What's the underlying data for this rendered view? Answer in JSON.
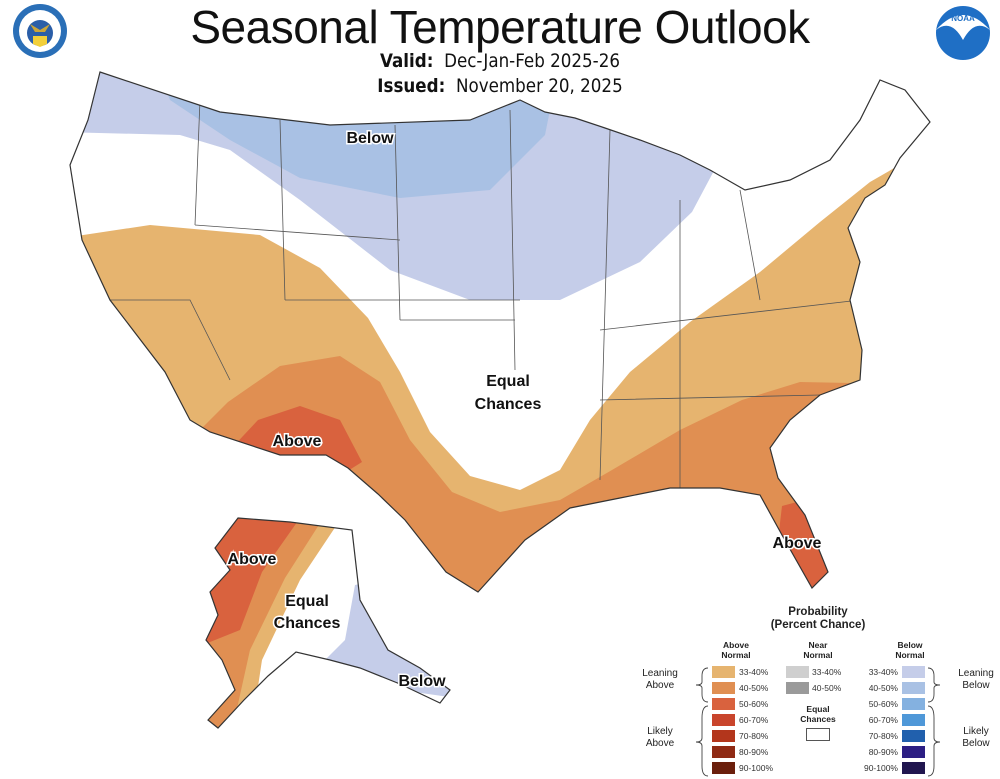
{
  "header": {
    "title": "Seasonal Temperature Outlook",
    "valid_label": "Valid:",
    "valid_value": "Dec-Jan-Feb 2025-26",
    "issued_label": "Issued:",
    "issued_value": "November 20, 2025",
    "left_logo": "department-of-commerce-seal",
    "right_logo": "noaa-logo",
    "right_logo_text": "NOAA"
  },
  "map": {
    "labels": {
      "conus_below": "Below",
      "conus_equal_1": "Equal",
      "conus_equal_2": "Chances",
      "conus_above_sw": "Above",
      "conus_above_fl": "Above",
      "ak_above": "Above",
      "ak_equal_1": "Equal",
      "ak_equal_2": "Chances",
      "ak_below": "Below"
    },
    "regions": [
      {
        "area": "Northern tier (Pacific NW to Great Lakes)",
        "category": "Below",
        "probability": "33-40%"
      },
      {
        "area": "Northern Plains core",
        "category": "Below",
        "probability": "40-50%"
      },
      {
        "area": "California to Mid-Atlantic/Northeast arc",
        "category": "Above",
        "probability": "33-40%"
      },
      {
        "area": "Southwest, Texas, Gulf Coast, Southeast",
        "category": "Above",
        "probability": "40-50%"
      },
      {
        "area": "New Mexico / Far West Texas",
        "category": "Above",
        "probability": "50-60%"
      },
      {
        "area": "Florida peninsula",
        "category": "Above",
        "probability": "50-60%"
      },
      {
        "area": "Central/Southern Plains, Ohio Valley, New England",
        "category": "Equal Chances"
      },
      {
        "area": "Western Alaska",
        "category": "Above",
        "probability": "50-60%"
      },
      {
        "area": "Southeast Alaska",
        "category": "Below",
        "probability": "33-40%"
      }
    ]
  },
  "legend": {
    "title_1": "Probability",
    "title_2": "(Percent Chance)",
    "above_head_1": "Above",
    "above_head_2": "Normal",
    "near_head_1": "Near",
    "near_head_2": "Normal",
    "below_head_1": "Below",
    "below_head_2": "Normal",
    "leaning_above_1": "Leaning",
    "leaning_above_2": "Above",
    "likely_above_1": "Likely",
    "likely_above_2": "Above",
    "leaning_below_1": "Leaning",
    "leaning_below_2": "Below",
    "likely_below_1": "Likely",
    "likely_below_2": "Below",
    "equal_1": "Equal",
    "equal_2": "Chances",
    "above": [
      {
        "range": "33-40%",
        "color": "#e6b46f"
      },
      {
        "range": "40-50%",
        "color": "#e08f52"
      },
      {
        "range": "50-60%",
        "color": "#d9623e"
      },
      {
        "range": "60-70%",
        "color": "#c9452c"
      },
      {
        "range": "70-80%",
        "color": "#b3361c"
      },
      {
        "range": "80-90%",
        "color": "#8f2a14"
      },
      {
        "range": "90-100%",
        "color": "#6b1f0c"
      }
    ],
    "near": [
      {
        "range": "33-40%",
        "color": "#cfcfcf"
      },
      {
        "range": "40-50%",
        "color": "#9a9a9a"
      }
    ],
    "below": [
      {
        "range": "33-40%",
        "color": "#c5cde9"
      },
      {
        "range": "40-50%",
        "color": "#a9c1e4"
      },
      {
        "range": "50-60%",
        "color": "#84b1e0"
      },
      {
        "range": "60-70%",
        "color": "#4f98d8"
      },
      {
        "range": "70-80%",
        "color": "#2160ad"
      },
      {
        "range": "80-90%",
        "color": "#2c1e83"
      },
      {
        "range": "90-100%",
        "color": "#21164f"
      }
    ],
    "equal_color": "#ffffff"
  }
}
